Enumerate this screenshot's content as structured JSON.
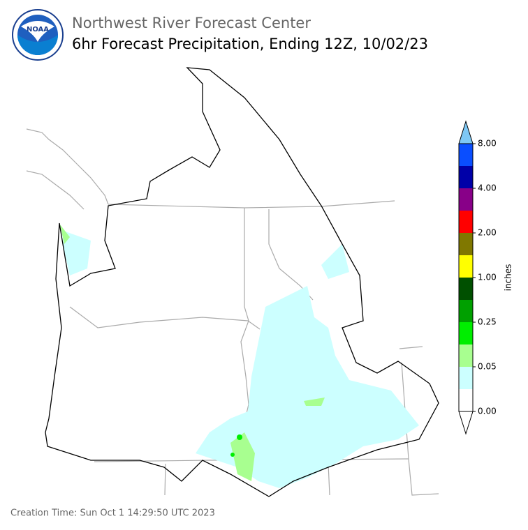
{
  "header": {
    "logo": "NOAA",
    "title": "Northwest River Forecast Center",
    "subtitle": "6hr Forecast Precipitation, Ending 12Z, 10/02/23"
  },
  "legend": {
    "label": "inches",
    "ticks": [
      "0.00",
      "0.05",
      "0.25",
      "1.00",
      "2.00",
      "4.00",
      "8.00"
    ],
    "colors": [
      "#ffffff",
      "#ccffff",
      "#a8ff90",
      "#00ee00",
      "#00a000",
      "#005000",
      "#ffff00",
      "#807800",
      "#ff0000",
      "#880088",
      "#0000a8",
      "#0a4eff"
    ],
    "under_color": "#ffffff",
    "over_color": "#7ec8f5"
  },
  "footer": {
    "creation_time": "Creation Time: Sun Oct 1 14:29:50 UTC 2023"
  }
}
